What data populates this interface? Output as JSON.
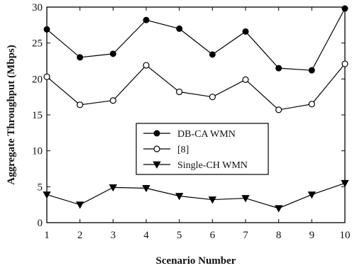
{
  "chart_data": {
    "type": "line",
    "xlabel": "Scenario Number",
    "ylabel": "Aggregate Throughput (Mbps)",
    "x": [
      1,
      2,
      3,
      4,
      5,
      6,
      7,
      8,
      9,
      10
    ],
    "xlim": [
      1,
      10
    ],
    "ylim": [
      0,
      30
    ],
    "xticks": [
      "1",
      "2",
      "3",
      "4",
      "5",
      "6",
      "7",
      "8",
      "9",
      "10"
    ],
    "yticks": [
      "0",
      "5",
      "10",
      "15",
      "20",
      "25",
      "30"
    ],
    "grid": false,
    "legend_position": "center-right",
    "series": [
      {
        "name": "DB-CA WMN",
        "marker": "filled-circle",
        "color": "#000000",
        "values": [
          26.9,
          23.0,
          23.5,
          28.2,
          27.0,
          23.4,
          26.6,
          21.5,
          21.2,
          29.8
        ]
      },
      {
        "name": "[8]",
        "marker": "open-circle",
        "color": "#000000",
        "values": [
          20.3,
          16.4,
          17.0,
          21.9,
          18.2,
          17.5,
          19.9,
          15.7,
          16.5,
          22.1
        ]
      },
      {
        "name": "Single-CH WMN",
        "marker": "filled-triangle-down",
        "color": "#000000",
        "values": [
          3.9,
          2.5,
          4.9,
          4.8,
          3.7,
          3.2,
          3.4,
          2.0,
          3.9,
          5.5
        ]
      }
    ]
  }
}
